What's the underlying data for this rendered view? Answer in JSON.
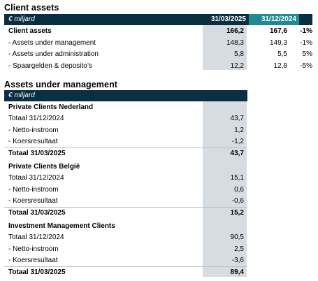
{
  "client_assets": {
    "title": "Client assets",
    "unit": "€ miljard",
    "col1_header": "31/03/2025",
    "col2_header": "31/12/2024",
    "rows": [
      {
        "label": "Client assets",
        "v1": "166,2",
        "v2": "167,6",
        "v3": "-1%",
        "bold": true
      },
      {
        "label": "- Assets under management",
        "v1": "148,3",
        "v2": "149,3",
        "v3": "-1%",
        "bold": false
      },
      {
        "label": "- Assets under administration",
        "v1": "5,8",
        "v2": "5,5",
        "v3": "5%",
        "bold": false
      },
      {
        "label": "- Spaargelden & deposito’s",
        "v1": "12,2",
        "v2": "12,8",
        "v3": "-5%",
        "bold": false
      }
    ]
  },
  "aum": {
    "title": "Assets under management",
    "unit": "€ miljard",
    "sections": [
      {
        "heading": "Private Clients Nederland",
        "rows": [
          {
            "label": "Totaal 31/12/2024",
            "value": "43,7",
            "bold": false
          },
          {
            "label": "- Netto-instroom",
            "value": "1,2",
            "bold": false
          },
          {
            "label": "- Koersresultaat",
            "value": "-1,2",
            "bold": false
          },
          {
            "label": "Totaal 31/03/2025",
            "value": "43,7",
            "bold": true
          }
        ]
      },
      {
        "heading": "Private Clients België",
        "rows": [
          {
            "label": "Totaal 31/12/2024",
            "value": "15,1",
            "bold": false
          },
          {
            "label": "- Netto-instroom",
            "value": "0,6",
            "bold": false
          },
          {
            "label": "- Koersresultaat",
            "value": "-0,6",
            "bold": false
          },
          {
            "label": "Totaal 31/03/2025",
            "value": "15,2",
            "bold": true
          }
        ]
      },
      {
        "heading": "Investment Management Clients",
        "rows": [
          {
            "label": "Totaal 31/12/2024",
            "value": "90,5",
            "bold": false
          },
          {
            "label": "- Netto-instroom",
            "value": "2,5",
            "bold": false
          },
          {
            "label": "- Koersresultaat",
            "value": "-3,6",
            "bold": false
          },
          {
            "label": "Totaal 31/03/2025",
            "value": "89,4",
            "bold": true
          }
        ]
      }
    ]
  }
}
